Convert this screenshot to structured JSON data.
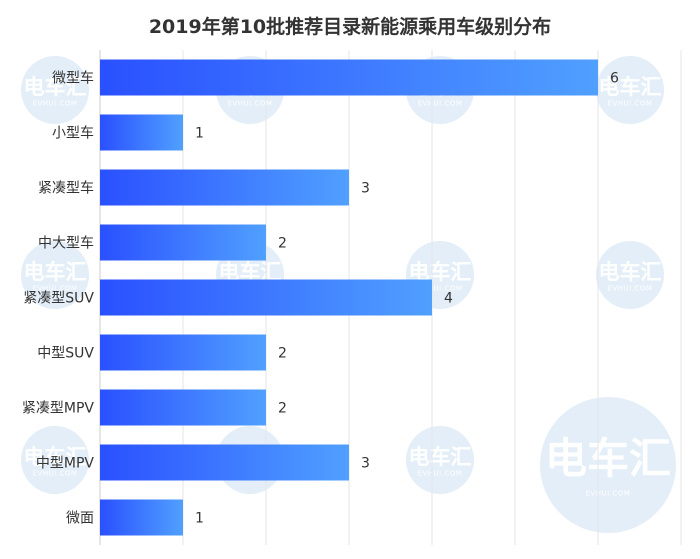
{
  "chart_data": {
    "type": "bar",
    "orientation": "horizontal",
    "title": "2019年第10批推荐目录新能源乘用车级别分布",
    "categories": [
      "微型车",
      "小型车",
      "紧凑型车",
      "中大型车",
      "紧凑型SUV",
      "中型SUV",
      "紧凑型MPV",
      "中型MPV",
      "微面"
    ],
    "values": [
      6,
      1,
      3,
      2,
      4,
      2,
      2,
      3,
      1
    ],
    "xlim": [
      0,
      7
    ],
    "grid": true,
    "legend": "none",
    "colors": {
      "bar_start": "#2a50ff",
      "bar_end": "#50a0ff",
      "grid": "#e6e6e6",
      "axis": "#cccccc"
    }
  },
  "watermark": {
    "text": "电车汇",
    "sub": "EVHUI.COM"
  }
}
